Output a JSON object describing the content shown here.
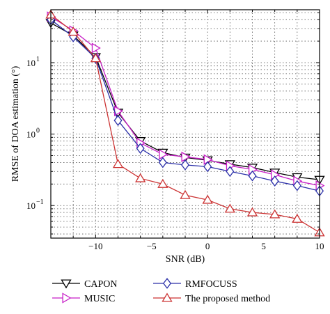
{
  "chart_data": {
    "type": "line",
    "xlabel": "SNR (dB)",
    "ylabel": "RMSE of DOA estimation (°)",
    "yscale": "log",
    "xlim": [
      -14,
      10
    ],
    "ylim": [
      0.035,
      55
    ],
    "grid": true,
    "x": [
      -14,
      -12,
      -10,
      -8,
      -6,
      -4,
      -2,
      0,
      2,
      4,
      6,
      8,
      10
    ],
    "x_ticks": [
      {
        "value": -10,
        "label": "−10"
      },
      {
        "value": -5,
        "label": "−5"
      },
      {
        "value": 0,
        "label": "0"
      },
      {
        "value": 5,
        "label": "5"
      },
      {
        "value": 10,
        "label": "10"
      }
    ],
    "y_ticks": [
      {
        "value": 10,
        "base": "10",
        "exp": "1"
      },
      {
        "value": 1,
        "base": "10",
        "exp": "0"
      },
      {
        "value": 0.1,
        "base": "10",
        "exp": "−1"
      }
    ],
    "legend_position": "bottom",
    "series": [
      {
        "name": "CAPON",
        "marker": "triangle-down",
        "color": "#000000",
        "values": [
          36,
          24,
          12,
          2.0,
          0.8,
          0.55,
          0.47,
          0.43,
          0.38,
          0.34,
          0.29,
          0.25,
          0.23
        ]
      },
      {
        "name": "MUSIC",
        "marker": "triangle-right",
        "color": "#c71fc7",
        "values": [
          44,
          28,
          16,
          2.1,
          0.75,
          0.52,
          0.48,
          0.44,
          0.36,
          0.32,
          0.27,
          0.22,
          0.19
        ]
      },
      {
        "name": "RMFOCUSS",
        "marker": "diamond",
        "color": "#2a2fa8",
        "values": [
          40,
          23,
          11.5,
          1.55,
          0.63,
          0.4,
          0.37,
          0.35,
          0.3,
          0.26,
          0.22,
          0.19,
          0.16
        ]
      },
      {
        "name": "The proposed method",
        "marker": "triangle-up",
        "color": "#cc3333",
        "values": [
          47,
          27,
          11.5,
          0.38,
          0.24,
          0.2,
          0.14,
          0.12,
          0.09,
          0.08,
          0.075,
          0.065,
          0.042
        ]
      }
    ]
  }
}
